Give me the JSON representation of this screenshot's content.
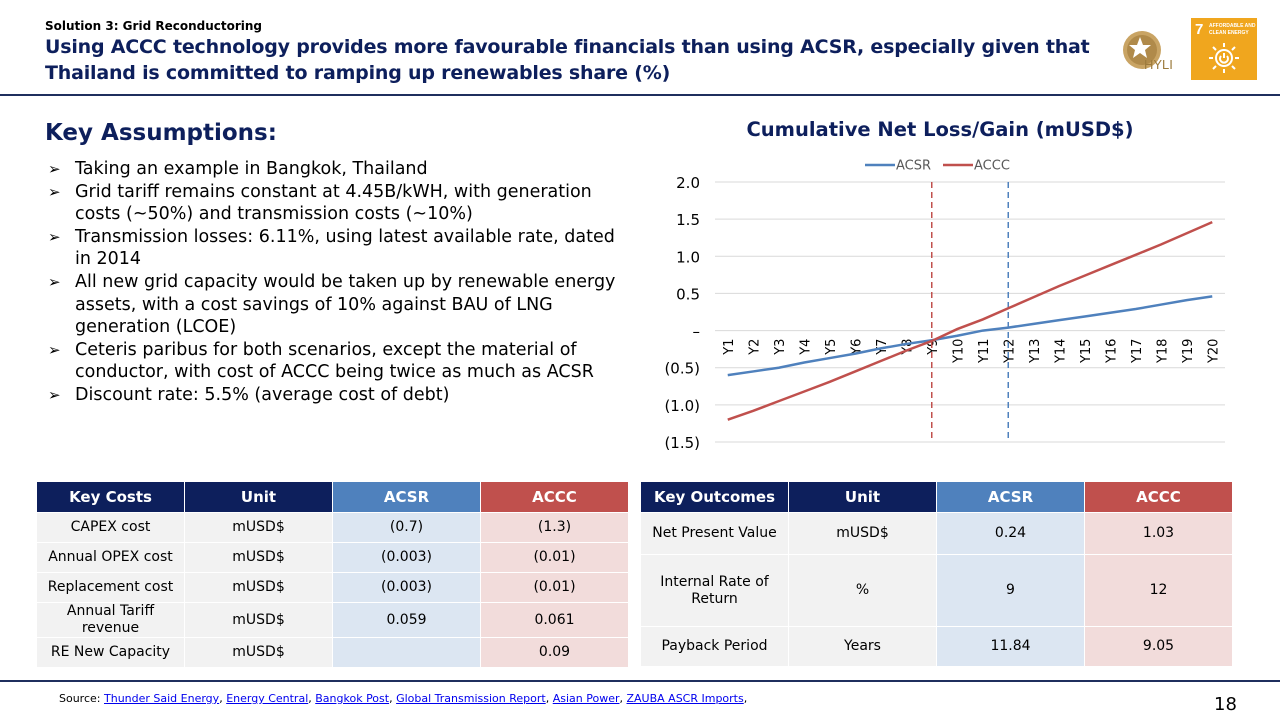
{
  "header": {
    "subtitle": "Solution 3: Grid Reconductoring",
    "title": "Using ACCC technology provides more favourable financials than using ACSR, especially given that Thailand is committed to ramping up renewables share (%)",
    "logo_text": "HYLI",
    "sdg_number": "7",
    "sdg_text": "AFFORDABLE AND CLEAN ENERGY"
  },
  "assumptions": {
    "heading": "Key Assumptions:",
    "items": [
      "Taking an example in Bangkok, Thailand",
      "Grid tariff remains constant at 4.45B/kWH, with generation costs (~50%) and transmission costs (~10%)",
      "Transmission losses: 6.11%, using latest available rate, dated in 2014",
      "All new grid capacity would be taken up by renewable energy assets, with a cost savings of 10% against BAU of LNG generation (LCOE)",
      "Ceteris paribus for both scenarios, except the material of conductor, with cost of ACCC being twice as much as ACSR",
      "Discount rate: 5.5% (average cost of debt)"
    ]
  },
  "chart_data": {
    "type": "line",
    "title": "Cumulative Net Loss/Gain (mUSD$)",
    "categories": [
      "Y1",
      "Y2",
      "Y3",
      "Y4",
      "Y5",
      "Y6",
      "Y7",
      "Y8",
      "Y9",
      "Y10",
      "Y11",
      "Y12",
      "Y13",
      "Y14",
      "Y15",
      "Y16",
      "Y17",
      "Y18",
      "Y19",
      "Y20"
    ],
    "series": [
      {
        "name": "ACSR",
        "color": "#4f81bd",
        "values": [
          -0.6,
          -0.55,
          -0.5,
          -0.43,
          -0.37,
          -0.31,
          -0.24,
          -0.18,
          -0.13,
          -0.07,
          0.0,
          0.04,
          0.09,
          0.14,
          0.19,
          0.24,
          0.29,
          0.35,
          0.41,
          0.46
        ]
      },
      {
        "name": "ACCC",
        "color": "#c0504d",
        "values": [
          -1.2,
          -1.08,
          -0.95,
          -0.82,
          -0.69,
          -0.55,
          -0.41,
          -0.27,
          -0.14,
          0.02,
          0.15,
          0.3,
          0.45,
          0.6,
          0.74,
          0.88,
          1.02,
          1.16,
          1.31,
          1.46
        ]
      }
    ],
    "y_ticks": [
      "2.0",
      "1.5",
      "1.0",
      "0.5",
      "–",
      "(0.5)",
      "(1.0)",
      "(1.5)"
    ],
    "ylim": [
      -1.5,
      2.0
    ],
    "markers": [
      {
        "category": "Y9",
        "color": "#c0504d"
      },
      {
        "category": "Y12",
        "color": "#4f81bd"
      }
    ],
    "grid": true,
    "legend": "top-center"
  },
  "costs_table": {
    "headers": [
      "Key Costs",
      "Unit",
      "ACSR",
      "ACCC"
    ],
    "rows": [
      [
        "CAPEX cost",
        "mUSD$",
        "(0.7)",
        "(1.3)"
      ],
      [
        "Annual OPEX cost",
        "mUSD$",
        "(0.003)",
        "(0.01)"
      ],
      [
        "Replacement cost",
        "mUSD$",
        "(0.003)",
        "(0.01)"
      ],
      [
        "Annual Tariff revenue",
        "mUSD$",
        "0.059",
        "0.061"
      ],
      [
        "RE New Capacity",
        "mUSD$",
        "",
        "0.09"
      ]
    ]
  },
  "outcomes_table": {
    "headers": [
      "Key Outcomes",
      "Unit",
      "ACSR",
      "ACCC"
    ],
    "rows": [
      [
        "Net Present Value",
        "mUSD$",
        "0.24",
        "1.03"
      ],
      [
        "Internal Rate of Return",
        "%",
        "9",
        "12"
      ],
      [
        "Payback Period",
        "Years",
        "11.84",
        "9.05"
      ]
    ]
  },
  "footer": {
    "source_label": "Source:",
    "sources": [
      "Thunder Said Energy",
      "Energy Central",
      "Bangkok Post",
      "Global Transmission Report",
      "Asian Power",
      "ZAUBA ASCR Imports"
    ],
    "page_number": "18"
  }
}
